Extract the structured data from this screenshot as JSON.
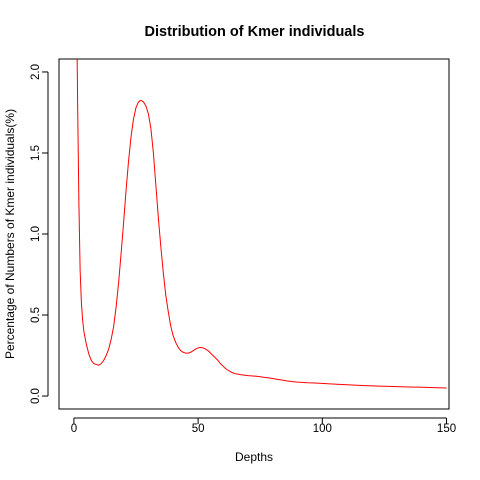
{
  "chart_data": {
    "type": "line",
    "title": "Distribution of Kmer individuals",
    "xlabel": "Depths",
    "ylabel": "Percentage of Numbers of Kmer individuals(%)",
    "xlim": [
      -6,
      151
    ],
    "ylim": [
      -0.08,
      2.08
    ],
    "xticks": [
      0,
      50,
      100,
      150
    ],
    "yticks": [
      0.0,
      0.5,
      1.0,
      1.5,
      2.0
    ],
    "xtick_labels": [
      "0",
      "50",
      "100",
      "150"
    ],
    "ytick_labels": [
      "0.0",
      "0.5",
      "1.0",
      "1.5",
      "2.0"
    ],
    "grid": false,
    "legend": "none",
    "series": [
      {
        "color": "#ff0000",
        "x": [
          1.3,
          1.5,
          2,
          2.5,
          3,
          3.5,
          4,
          5,
          6,
          7,
          8,
          9,
          10,
          11,
          12,
          13,
          14,
          15,
          16,
          17,
          18,
          19,
          20,
          21,
          22,
          23,
          24,
          25,
          26,
          27,
          28,
          29,
          30,
          31,
          32,
          33,
          34,
          35,
          36,
          37,
          38,
          39,
          40,
          41,
          42,
          43,
          44,
          45,
          46,
          47,
          48,
          49,
          50,
          51,
          52,
          53,
          54,
          55,
          56,
          57,
          58,
          59,
          60,
          61,
          62,
          63,
          64,
          65,
          66,
          67,
          68,
          69,
          70,
          72,
          74,
          76,
          78,
          80,
          82,
          84,
          86,
          88,
          90,
          92,
          94,
          96,
          98,
          100,
          103,
          106,
          110,
          115,
          120,
          125,
          130,
          135,
          140,
          145,
          150
        ],
        "y": [
          2.1,
          1.8,
          1.2,
          0.78,
          0.58,
          0.47,
          0.4,
          0.32,
          0.26,
          0.22,
          0.2,
          0.195,
          0.19,
          0.2,
          0.22,
          0.25,
          0.29,
          0.35,
          0.43,
          0.55,
          0.7,
          0.88,
          1.07,
          1.27,
          1.45,
          1.6,
          1.71,
          1.78,
          1.815,
          1.825,
          1.815,
          1.79,
          1.74,
          1.65,
          1.5,
          1.3,
          1.1,
          0.92,
          0.76,
          0.62,
          0.52,
          0.43,
          0.37,
          0.33,
          0.3,
          0.28,
          0.27,
          0.265,
          0.265,
          0.27,
          0.28,
          0.29,
          0.297,
          0.3,
          0.297,
          0.29,
          0.28,
          0.265,
          0.25,
          0.235,
          0.22,
          0.2,
          0.185,
          0.17,
          0.16,
          0.15,
          0.143,
          0.138,
          0.135,
          0.132,
          0.13,
          0.128,
          0.126,
          0.124,
          0.121,
          0.117,
          0.113,
          0.108,
          0.103,
          0.098,
          0.093,
          0.089,
          0.086,
          0.084,
          0.082,
          0.081,
          0.08,
          0.078,
          0.075,
          0.073,
          0.07,
          0.066,
          0.063,
          0.06,
          0.058,
          0.056,
          0.054,
          0.052,
          0.05
        ]
      }
    ]
  }
}
